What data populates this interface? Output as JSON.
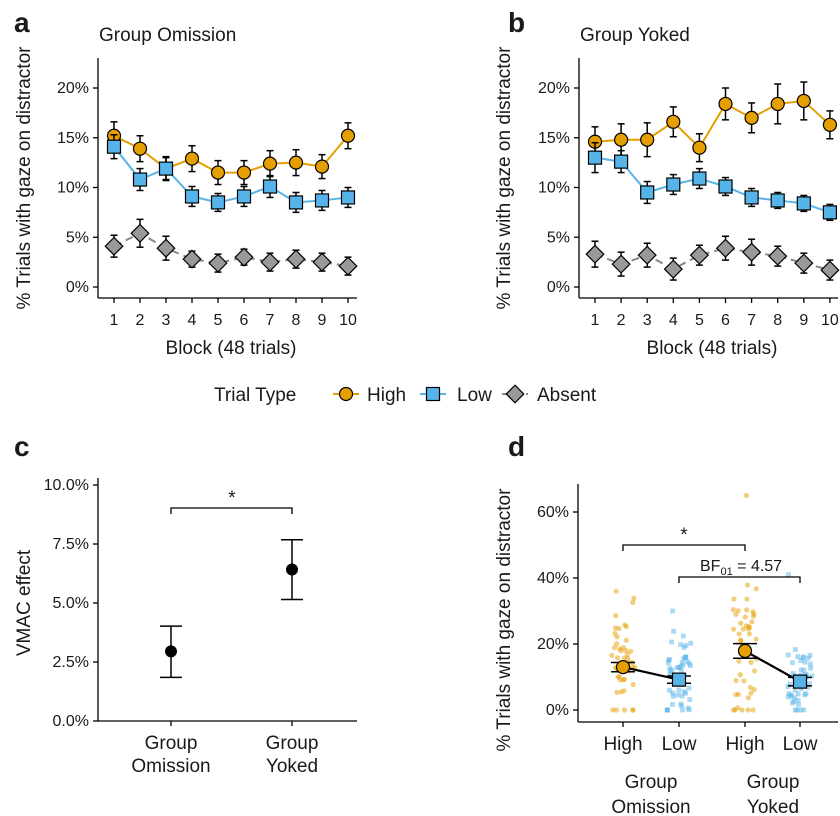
{
  "chart_data": [
    {
      "panel": "a",
      "type": "line",
      "title": "Group Omission",
      "xlabel": "Block (48 trials)",
      "ylabel": "% Trials with gaze on distractor",
      "x": [
        1,
        2,
        3,
        4,
        5,
        6,
        7,
        8,
        9,
        10
      ],
      "ylim": [
        0,
        0.22
      ],
      "yticks": [
        "0%",
        "5%",
        "10%",
        "15%",
        "20%"
      ],
      "series": [
        {
          "name": "High",
          "values": [
            15.2,
            13.9,
            11.9,
            12.9,
            11.5,
            11.5,
            12.4,
            12.5,
            12.1,
            15.2
          ],
          "errors": [
            1.4,
            1.3,
            1.2,
            1.3,
            1.2,
            1.2,
            1.3,
            1.3,
            1.2,
            1.3
          ]
        },
        {
          "name": "Low",
          "values": [
            14.1,
            10.8,
            11.9,
            9.1,
            8.5,
            9.1,
            10.1,
            8.5,
            8.7,
            9.0
          ],
          "errors": [
            1.2,
            1.1,
            1.1,
            1.0,
            0.9,
            1.0,
            1.1,
            1.0,
            1.0,
            1.0
          ]
        },
        {
          "name": "Absent",
          "values": [
            4.1,
            5.4,
            3.9,
            2.8,
            2.4,
            3.0,
            2.5,
            2.8,
            2.5,
            2.1
          ],
          "errors": [
            1.1,
            1.4,
            1.2,
            0.8,
            0.9,
            0.8,
            0.9,
            0.9,
            0.9,
            0.9
          ]
        }
      ]
    },
    {
      "panel": "b",
      "type": "line",
      "title": "Group Yoked",
      "xlabel": "Block (48 trials)",
      "ylabel": "% Trials with gaze on distractor",
      "x": [
        1,
        2,
        3,
        4,
        5,
        6,
        7,
        8,
        9,
        10
      ],
      "ylim": [
        0,
        0.22
      ],
      "yticks": [
        "0%",
        "5%",
        "10%",
        "15%",
        "20%"
      ],
      "series": [
        {
          "name": "High",
          "values": [
            14.6,
            14.8,
            14.8,
            16.6,
            14.0,
            18.4,
            17.0,
            18.4,
            18.7,
            16.3
          ],
          "errors": [
            1.5,
            1.6,
            1.7,
            1.5,
            1.4,
            1.6,
            1.5,
            2.0,
            1.9,
            1.4
          ]
        },
        {
          "name": "Low",
          "values": [
            13.0,
            12.6,
            9.5,
            10.3,
            10.9,
            10.1,
            9.0,
            8.7,
            8.4,
            7.5
          ],
          "errors": [
            1.5,
            1.1,
            1.1,
            1.0,
            1.0,
            0.9,
            0.9,
            0.8,
            0.8,
            0.8
          ]
        },
        {
          "name": "Absent",
          "values": [
            3.3,
            2.3,
            3.2,
            1.8,
            3.2,
            3.9,
            3.5,
            3.1,
            2.4,
            1.7
          ],
          "errors": [
            1.3,
            1.2,
            1.2,
            1.1,
            1.0,
            1.2,
            1.3,
            1.0,
            1.0,
            1.0
          ]
        }
      ]
    },
    {
      "panel": "c",
      "type": "scatter",
      "ylabel": "VMAC effect",
      "categories": [
        "Group\nOmission",
        "Group\nYoked"
      ],
      "values": [
        2.95,
        6.42
      ],
      "ci_low": [
        1.85,
        5.15
      ],
      "ci_high": [
        4.02,
        7.68
      ],
      "ylim": [
        0,
        10
      ],
      "yticks": [
        "0.0%",
        "2.5%",
        "5.0%",
        "7.5%",
        "10.0%"
      ],
      "annotation": "*"
    },
    {
      "panel": "d",
      "type": "scatter",
      "ylabel": "% Trials with gaze on distractor",
      "categories": [
        "High",
        "Low",
        "High",
        "Low"
      ],
      "groups": [
        "Group\nOmission",
        "Group\nYoked"
      ],
      "values": [
        13.0,
        9.2,
        17.9,
        8.6
      ],
      "errors": [
        1.4,
        1.1,
        2.2,
        1.3
      ],
      "ylim": [
        0,
        68
      ],
      "yticks": [
        "0%",
        "20%",
        "40%",
        "60%"
      ],
      "annotations": [
        "*",
        "BF01 = 4.57"
      ]
    }
  ],
  "labels": {
    "a": "a",
    "b": "b",
    "c": "c",
    "d": "d"
  },
  "legend": {
    "title": "Trial Type",
    "items": [
      {
        "name": "High",
        "color": "#E69F00",
        "shape": "circle"
      },
      {
        "name": "Low",
        "color": "#56B4E9",
        "shape": "square"
      },
      {
        "name": "Absent",
        "color": "#999999",
        "shape": "diamond"
      }
    ]
  },
  "colors": {
    "high": "#E69F00",
    "low": "#56B4E9",
    "absent": "#999999",
    "absent_line": "#888888"
  },
  "panel_d_text": {
    "star": "*",
    "bf_prefix": "BF",
    "bf_sub": "01",
    "bf_suffix": " = 4.57"
  }
}
